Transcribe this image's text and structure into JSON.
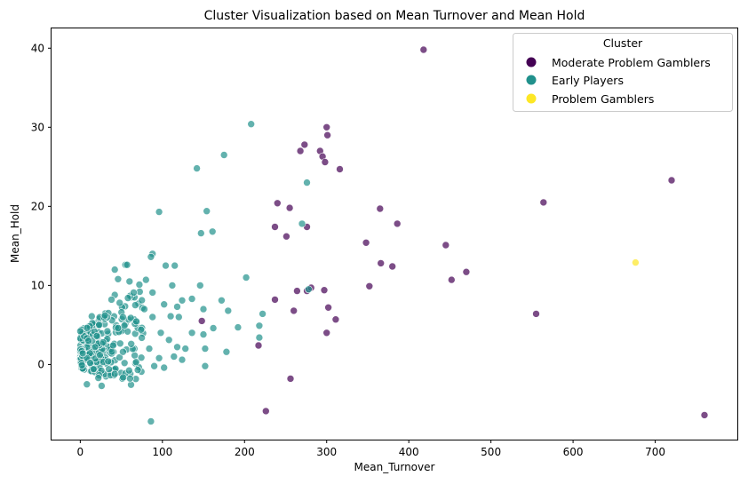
{
  "chart_data": {
    "type": "scatter",
    "title": "Cluster Visualization based on Mean Turnover and Mean Hold",
    "xlabel": "Mean_Turnover",
    "ylabel": "Mean_Hold",
    "xlim": [
      -35,
      800
    ],
    "ylim": [
      -9.5,
      42.5
    ],
    "xticks": [
      0,
      100,
      200,
      300,
      400,
      500,
      600,
      700
    ],
    "yticks": [
      0,
      10,
      20,
      30,
      40
    ],
    "grid": false,
    "legend": {
      "title": "Cluster",
      "placement": "top-right"
    },
    "series": [
      {
        "name": "Moderate Problem Gamblers",
        "color": "#440154",
        "points": [
          [
            418,
            39.8
          ],
          [
            300,
            30.0
          ],
          [
            301,
            29.0
          ],
          [
            268,
            27.0
          ],
          [
            273,
            27.8
          ],
          [
            292,
            27.0
          ],
          [
            295,
            26.3
          ],
          [
            298,
            25.6
          ],
          [
            316,
            24.7
          ],
          [
            720,
            23.3
          ],
          [
            240,
            20.4
          ],
          [
            564,
            20.5
          ],
          [
            255,
            19.8
          ],
          [
            365,
            19.7
          ],
          [
            386,
            17.8
          ],
          [
            237,
            17.4
          ],
          [
            276,
            17.4
          ],
          [
            251,
            16.2
          ],
          [
            348,
            15.4
          ],
          [
            445,
            15.1
          ],
          [
            366,
            12.8
          ],
          [
            380,
            12.4
          ],
          [
            470,
            11.7
          ],
          [
            452,
            10.7
          ],
          [
            352,
            9.9
          ],
          [
            264,
            9.3
          ],
          [
            276,
            9.3
          ],
          [
            281,
            9.7
          ],
          [
            297,
            9.4
          ],
          [
            237,
            8.2
          ],
          [
            302,
            7.2
          ],
          [
            260,
            6.8
          ],
          [
            311,
            5.7
          ],
          [
            148,
            5.5
          ],
          [
            555,
            6.4
          ],
          [
            300,
            4.0
          ],
          [
            217,
            2.4
          ],
          [
            256,
            -1.8
          ],
          [
            226,
            -5.9
          ],
          [
            760,
            -6.4
          ]
        ]
      },
      {
        "name": "Early Players",
        "color": "#21918c",
        "points": [
          [
            208,
            30.4
          ],
          [
            175,
            26.5
          ],
          [
            142,
            24.8
          ],
          [
            276,
            23.0
          ],
          [
            96,
            19.3
          ],
          [
            154,
            19.4
          ],
          [
            270,
            17.8
          ],
          [
            161,
            16.8
          ],
          [
            147,
            16.6
          ],
          [
            88,
            14.0
          ],
          [
            86,
            13.6
          ],
          [
            55,
            12.6
          ],
          [
            57,
            12.6
          ],
          [
            104,
            12.5
          ],
          [
            115,
            12.5
          ],
          [
            42,
            12.0
          ],
          [
            202,
            11.0
          ],
          [
            60,
            10.5
          ],
          [
            46,
            10.8
          ],
          [
            112,
            10.0
          ],
          [
            146,
            10.0
          ],
          [
            80,
            10.7
          ],
          [
            72,
            10.1
          ],
          [
            278,
            9.5
          ],
          [
            88,
            9.1
          ],
          [
            65,
            9.1
          ],
          [
            42,
            8.8
          ],
          [
            38,
            8.2
          ],
          [
            58,
            8.4
          ],
          [
            124,
            8.1
          ],
          [
            136,
            8.3
          ],
          [
            172,
            8.1
          ],
          [
            48,
            7.8
          ],
          [
            67,
            7.5
          ],
          [
            102,
            7.6
          ],
          [
            118,
            7.3
          ],
          [
            78,
            7.0
          ],
          [
            150,
            7.0
          ],
          [
            222,
            6.4
          ],
          [
            180,
            6.8
          ],
          [
            14,
            6.1
          ],
          [
            30,
            6.2
          ],
          [
            110,
            6.1
          ],
          [
            52,
            6.0
          ],
          [
            88,
            6.0
          ],
          [
            120,
            6.0
          ],
          [
            218,
            4.9
          ],
          [
            192,
            4.7
          ],
          [
            162,
            4.6
          ],
          [
            136,
            4.0
          ],
          [
            10,
            3.0
          ],
          [
            20,
            3.6
          ],
          [
            33,
            4.2
          ],
          [
            46,
            4.6
          ],
          [
            74,
            4.4
          ],
          [
            98,
            4.0
          ],
          [
            108,
            3.1
          ],
          [
            218,
            3.4
          ],
          [
            150,
            3.8
          ],
          [
            18,
            2.2
          ],
          [
            28,
            2.8
          ],
          [
            40,
            2.4
          ],
          [
            62,
            2.6
          ],
          [
            84,
            2.0
          ],
          [
            118,
            2.2
          ],
          [
            128,
            2.0
          ],
          [
            152,
            2.0
          ],
          [
            178,
            1.6
          ],
          [
            24,
            1.2
          ],
          [
            52,
            1.6
          ],
          [
            96,
            0.8
          ],
          [
            114,
            1.0
          ],
          [
            124,
            0.6
          ],
          [
            8,
            0.8
          ],
          [
            12,
            0.2
          ],
          [
            34,
            0.4
          ],
          [
            68,
            0.3
          ],
          [
            90,
            -0.2
          ],
          [
            102,
            -0.4
          ],
          [
            152,
            -0.2
          ],
          [
            70,
            -0.7
          ],
          [
            16,
            -0.6
          ],
          [
            22,
            -1.7
          ],
          [
            42,
            -1.2
          ],
          [
            8,
            -2.5
          ],
          [
            26,
            -2.7
          ],
          [
            86,
            -7.2
          ],
          [
            3,
            1.4
          ],
          [
            3,
            -0.5
          ],
          [
            2,
            -0.1
          ]
        ]
      },
      {
        "name": "Problem Gamblers",
        "color": "#fde725",
        "points": [
          [
            676,
            12.9
          ]
        ]
      }
    ]
  }
}
